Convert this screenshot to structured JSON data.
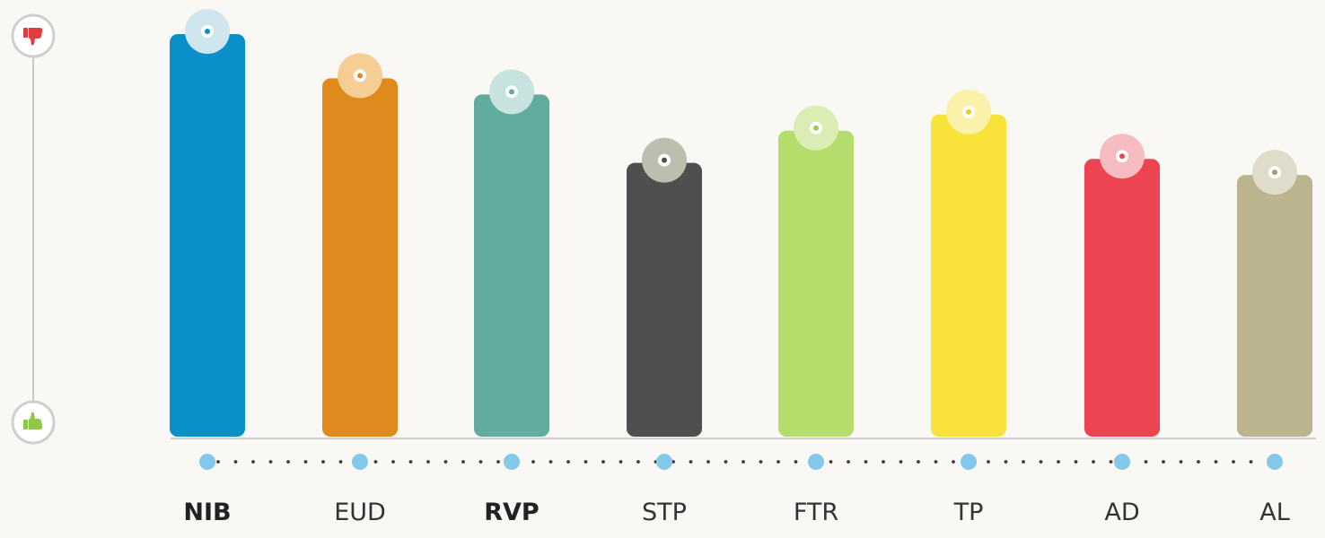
{
  "chart_data": {
    "type": "bar",
    "categories": [
      "NIB",
      "EUD",
      "RVP",
      "STP",
      "FTR",
      "TP",
      "AD",
      "AL"
    ],
    "values": [
      100,
      89,
      85,
      68,
      76,
      80,
      69,
      65
    ],
    "ylim": [
      0,
      100
    ],
    "grid": false,
    "legend": "none",
    "bold_categories": [
      "NIB",
      "RVP"
    ],
    "bar_colors": [
      "#0a90c8",
      "#de8a1c",
      "#62ab9f",
      "#4f4f4f",
      "#b4dd6c",
      "#f9e33b",
      "#ec4451",
      "#bbb48f"
    ],
    "marker_colors": [
      "#cfe6ee",
      "#f7cd96",
      "#c7e3df",
      "#bdbdb0",
      "#d9edb4",
      "#fbf2a9",
      "#f7bcc1",
      "#dfdcc9"
    ],
    "marker_dot_colors": [
      "#0a90c8",
      "#de8a1c",
      "#62ab9f",
      "#4f4f4f",
      "#9fc85a",
      "#e8cf1f",
      "#ec4451",
      "#a29a70"
    ]
  },
  "scale": {
    "top_icon": "thumbs-down-icon",
    "bottom_icon": "thumbs-up-icon",
    "top_icon_color": "#e33b42",
    "bottom_icon_color": "#8fc74a"
  },
  "axis": {
    "dot_color": "#85c9ea",
    "leader_color": "#3a3a3a",
    "baseline_color": "#cfcfcf"
  }
}
